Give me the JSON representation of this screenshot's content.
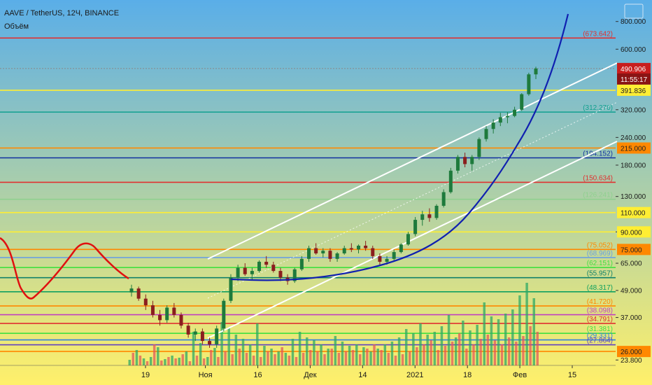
{
  "header": {
    "symbol_line": "AAVE / TetherUS, 12Ч, BINANCE",
    "volume_label": "Объём"
  },
  "colors": {
    "bg_top": "#5aaee8",
    "bg_bottom": "#fff06a",
    "candle_up": "#1e7a3c",
    "candle_down": "#8a1e1e",
    "volume_up": "#2eaa66",
    "volume_down": "#e05a5a",
    "channel": "#ffffff",
    "parabola": "#1020b0",
    "oscillator": "#e01010"
  },
  "chart_data": {
    "type": "candlestick",
    "y_scale": "log",
    "ylim": [
      22.5,
      1000
    ],
    "x_range": [
      0,
      100
    ],
    "y_ticks": [
      "800.000",
      "600.000",
      "320.000",
      "240.000",
      "180.000",
      "130.000",
      "90.000",
      "65.000",
      "49.000",
      "37.000",
      "23.800"
    ],
    "x_ticks": [
      {
        "x": 4,
        "label": "19"
      },
      {
        "x": 12,
        "label": "Ноя"
      },
      {
        "x": 19,
        "label": "16"
      },
      {
        "x": 26,
        "label": "Дек"
      },
      {
        "x": 33,
        "label": "14"
      },
      {
        "x": 40,
        "label": "2021"
      },
      {
        "x": 47,
        "label": "18"
      },
      {
        "x": 54,
        "label": "Фев"
      },
      {
        "x": 61,
        "label": "15"
      }
    ],
    "price_badges": [
      {
        "label": "490.906",
        "value": 490.906,
        "fill": "#c81e1e",
        "color": "#ffffff"
      },
      {
        "label": "11:55:17",
        "value": 440,
        "fill": "#8a1414",
        "color": "#ffffff"
      },
      {
        "label": "391.836",
        "value": 391.836,
        "fill": "#ffee33",
        "color": "#222222"
      },
      {
        "label": "215.000",
        "value": 215.0,
        "fill": "#ff8800",
        "color": "#222222"
      },
      {
        "label": "110.000",
        "value": 110.0,
        "fill": "#ffee33",
        "color": "#222222"
      },
      {
        "label": "90.000",
        "value": 90.0,
        "fill": "#ffee33",
        "color": "#222222"
      },
      {
        "label": "75.000",
        "value": 75.0,
        "fill": "#ff8800",
        "color": "#222222"
      },
      {
        "label": "26.000",
        "value": 26.0,
        "fill": "#ff8800",
        "color": "#222222"
      }
    ],
    "levels": [
      {
        "value": 673.642,
        "label": "(673.642)",
        "color": "#e03030"
      },
      {
        "value": 490.906,
        "label": "",
        "color": "#888888",
        "dashed": true
      },
      {
        "value": 391.836,
        "label": "",
        "color": "#ffee33"
      },
      {
        "value": 312.27,
        "label": "(312.270)",
        "color": "#10a090"
      },
      {
        "value": 215.0,
        "label": "",
        "color": "#ff8800"
      },
      {
        "value": 194.152,
        "label": "(194.152)",
        "color": "#1030a0"
      },
      {
        "value": 150.634,
        "label": "(150.634)",
        "color": "#e03030"
      },
      {
        "value": 126.241,
        "label": "(126.241)",
        "color": "#8fd08f"
      },
      {
        "value": 110.0,
        "label": "",
        "color": "#ffee33"
      },
      {
        "value": 90.0,
        "label": "",
        "color": "#ffee33"
      },
      {
        "value": 75.052,
        "label": "(75.052)",
        "color": "#ff8800"
      },
      {
        "value": 68.969,
        "label": "(68.969)",
        "color": "#6aa0e0"
      },
      {
        "value": 62.151,
        "label": "(62.151)",
        "color": "#40e040"
      },
      {
        "value": 55.957,
        "label": "(55.957)",
        "color": "#10806a"
      },
      {
        "value": 48.317,
        "label": "(48.317)",
        "color": "#10a060"
      },
      {
        "value": 41.72,
        "label": "(41.720)",
        "color": "#ff8800"
      },
      {
        "value": 38.098,
        "label": "(38.098)",
        "color": "#c040c0"
      },
      {
        "value": 34.791,
        "label": "(34.791)",
        "color": "#e03030"
      },
      {
        "value": 31.381,
        "label": "(31.381)",
        "color": "#40e040"
      },
      {
        "value": 29.331,
        "label": "(29.331)",
        "color": "#3080e0"
      },
      {
        "value": 27.864,
        "label": "(27.864)",
        "color": "#6040c0"
      },
      {
        "value": 26.0,
        "label": "",
        "color": "#ff8800"
      }
    ],
    "candles": [
      [
        0,
        48,
        52,
        46,
        50
      ],
      [
        1,
        50,
        51,
        44,
        45
      ],
      [
        2,
        45,
        47,
        40,
        42
      ],
      [
        3,
        42,
        44,
        37,
        38
      ],
      [
        4,
        38,
        40,
        34,
        36
      ],
      [
        5,
        36,
        42,
        35,
        41
      ],
      [
        6,
        41,
        43,
        37,
        38
      ],
      [
        7,
        38,
        39,
        33,
        34
      ],
      [
        8,
        34,
        35,
        30,
        31
      ],
      [
        9,
        31,
        33,
        29,
        32
      ],
      [
        10,
        32,
        33,
        28,
        29
      ],
      [
        11,
        29,
        30,
        27,
        28
      ],
      [
        12,
        28,
        34,
        27,
        33
      ],
      [
        13,
        33,
        45,
        32,
        44
      ],
      [
        14,
        44,
        58,
        43,
        56
      ],
      [
        15,
        56,
        64,
        54,
        62
      ],
      [
        16,
        62,
        65,
        57,
        58
      ],
      [
        17,
        58,
        62,
        55,
        60
      ],
      [
        18,
        60,
        67,
        59,
        66
      ],
      [
        19,
        66,
        70,
        62,
        64
      ],
      [
        20,
        64,
        66,
        59,
        60
      ],
      [
        21,
        60,
        62,
        54,
        56
      ],
      [
        22,
        56,
        58,
        52,
        54
      ],
      [
        23,
        54,
        62,
        53,
        61
      ],
      [
        24,
        61,
        70,
        60,
        68
      ],
      [
        25,
        68,
        78,
        66,
        76
      ],
      [
        26,
        76,
        80,
        71,
        72
      ],
      [
        27,
        72,
        76,
        69,
        74
      ],
      [
        28,
        74,
        76,
        66,
        68
      ],
      [
        29,
        68,
        73,
        66,
        72
      ],
      [
        30,
        72,
        78,
        71,
        76
      ],
      [
        31,
        76,
        80,
        73,
        75
      ],
      [
        32,
        75,
        79,
        72,
        78
      ],
      [
        33,
        78,
        82,
        74,
        76
      ],
      [
        34,
        76,
        78,
        68,
        70
      ],
      [
        35,
        70,
        72,
        64,
        66
      ],
      [
        36,
        66,
        70,
        64,
        68
      ],
      [
        37,
        68,
        75,
        67,
        73
      ],
      [
        38,
        73,
        80,
        72,
        79
      ],
      [
        39,
        79,
        90,
        78,
        88
      ],
      [
        40,
        88,
        105,
        86,
        102
      ],
      [
        41,
        102,
        112,
        96,
        108
      ],
      [
        42,
        108,
        115,
        100,
        104
      ],
      [
        43,
        104,
        120,
        102,
        118
      ],
      [
        44,
        118,
        140,
        116,
        136
      ],
      [
        45,
        136,
        175,
        134,
        170
      ],
      [
        46,
        170,
        200,
        165,
        196
      ],
      [
        47,
        196,
        205,
        176,
        182
      ],
      [
        48,
        182,
        200,
        170,
        196
      ],
      [
        49,
        196,
        240,
        190,
        236
      ],
      [
        50,
        236,
        270,
        230,
        262
      ],
      [
        51,
        262,
        290,
        250,
        280
      ],
      [
        52,
        280,
        310,
        270,
        296
      ],
      [
        53,
        296,
        312,
        278,
        300
      ],
      [
        54,
        300,
        330,
        296,
        320
      ],
      [
        55,
        320,
        380,
        316,
        376
      ],
      [
        56,
        376,
        470,
        370,
        462
      ],
      [
        57,
        462,
        500,
        440,
        490.906
      ]
    ],
    "volume_up": [
      8,
      22,
      10,
      12,
      26,
      9,
      14,
      11,
      20,
      48,
      32,
      12,
      25,
      62,
      54,
      44,
      38,
      30,
      60,
      28,
      24,
      20,
      18,
      38,
      48,
      40,
      36,
      30,
      24,
      42,
      34,
      28,
      30,
      26,
      20,
      24,
      30,
      34,
      40,
      52,
      46,
      60,
      44,
      48,
      56,
      72,
      40,
      64,
      50,
      58,
      90,
      70,
      66,
      74,
      80,
      100,
      118,
      96
    ],
    "volume_down": [
      18,
      14,
      6,
      30,
      7,
      12,
      10,
      16,
      6,
      14,
      10,
      22,
      12,
      20,
      16,
      24,
      18,
      14,
      12,
      20,
      16,
      26,
      14,
      12,
      18,
      22,
      20,
      16,
      24,
      18,
      20,
      22,
      16,
      24,
      30,
      22,
      18,
      14,
      16,
      20,
      26,
      30,
      36,
      22,
      28,
      34,
      46,
      24,
      30,
      38,
      44,
      36,
      30,
      40,
      34,
      42,
      56,
      48
    ]
  }
}
